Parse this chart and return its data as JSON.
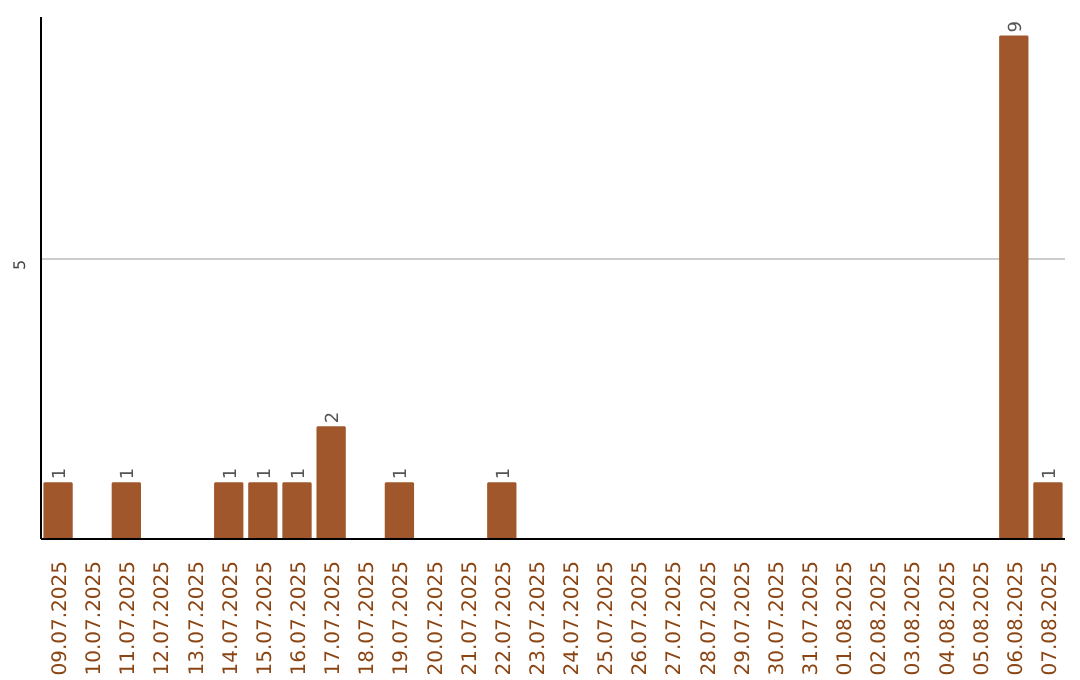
{
  "chart_data": {
    "type": "bar",
    "categories": [
      "09.07.2025",
      "10.07.2025",
      "11.07.2025",
      "12.07.2025",
      "13.07.2025",
      "14.07.2025",
      "15.07.2025",
      "16.07.2025",
      "17.07.2025",
      "18.07.2025",
      "19.07.2025",
      "20.07.2025",
      "21.07.2025",
      "22.07.2025",
      "23.07.2025",
      "24.07.2025",
      "25.07.2025",
      "26.07.2025",
      "27.07.2025",
      "28.07.2025",
      "29.07.2025",
      "30.07.2025",
      "31.07.2025",
      "01.08.2025",
      "02.08.2025",
      "03.08.2025",
      "04.08.2025",
      "05.08.2025",
      "06.08.2025",
      "07.08.2025"
    ],
    "values": [
      1,
      0,
      1,
      0,
      0,
      1,
      1,
      1,
      2,
      0,
      1,
      0,
      0,
      1,
      0,
      0,
      0,
      0,
      0,
      0,
      0,
      0,
      0,
      0,
      0,
      0,
      0,
      0,
      9,
      1
    ],
    "color": "#a0572b",
    "value_labels": [
      "1",
      null,
      "1",
      null,
      null,
      "1",
      "1",
      "1",
      "2",
      null,
      "1",
      null,
      null,
      "1",
      null,
      null,
      null,
      null,
      null,
      null,
      null,
      null,
      null,
      null,
      null,
      null,
      null,
      null,
      "9",
      "1"
    ],
    "ylim": [
      0,
      9.35
    ],
    "yticks": [
      5
    ],
    "grid": "y"
  }
}
